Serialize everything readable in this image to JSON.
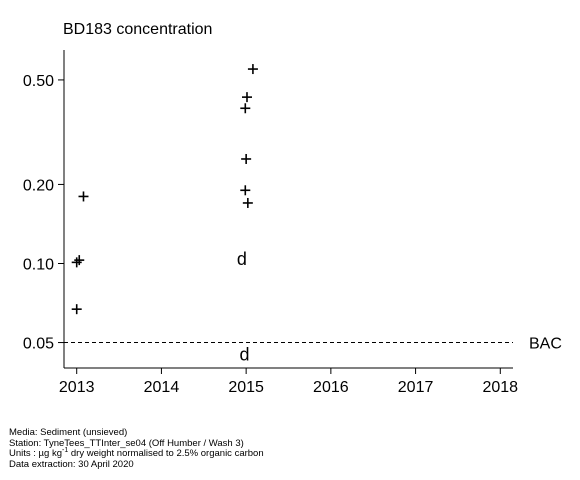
{
  "chart_data": {
    "type": "scatter",
    "title": "BD183 concentration",
    "y_scale": "log",
    "ylim": [
      0.04,
      0.65
    ],
    "xlim": [
      2012.85,
      2018.15
    ],
    "x_ticks": [
      2013,
      2014,
      2015,
      2016,
      2017,
      2018
    ],
    "x_tick_labels": [
      "2013",
      "2014",
      "2015",
      "2016",
      "2017",
      "2018"
    ],
    "y_ticks": [
      0.05,
      0.1,
      0.2,
      0.5
    ],
    "y_tick_labels": [
      "0.05",
      "0.10",
      "0.20",
      "0.50"
    ],
    "grid": false,
    "series": [
      {
        "marker": "plus",
        "points": [
          {
            "x": 2013.08,
            "y": 0.18
          },
          {
            "x": 2013.03,
            "y": 0.103
          },
          {
            "x": 2013.0,
            "y": 0.101
          },
          {
            "x": 2013.0,
            "y": 0.067
          },
          {
            "x": 2015.08,
            "y": 0.55
          },
          {
            "x": 2015.01,
            "y": 0.43
          },
          {
            "x": 2014.99,
            "y": 0.39
          },
          {
            "x": 2015.0,
            "y": 0.25
          },
          {
            "x": 2014.99,
            "y": 0.19
          },
          {
            "x": 2015.02,
            "y": 0.17
          }
        ]
      },
      {
        "marker": "d",
        "marker_text": "d",
        "points": [
          {
            "x": 2014.95,
            "y": 0.104
          },
          {
            "x": 2014.98,
            "y": 0.045
          }
        ]
      }
    ],
    "reference_lines": [
      {
        "y": 0.05,
        "label": "BAC",
        "style": "dashed"
      }
    ]
  },
  "caption": {
    "media": "Media: Sediment (unsieved)",
    "station": "Station: TyneTees_TTInter_se04 (Off Humber / Wash 3)",
    "units_prefix": "Units : µg kg",
    "units_sup": "-1",
    "units_suffix": " dry weight normalised to 2.5% organic carbon",
    "extraction": "Data extraction: 30 April 2020"
  }
}
